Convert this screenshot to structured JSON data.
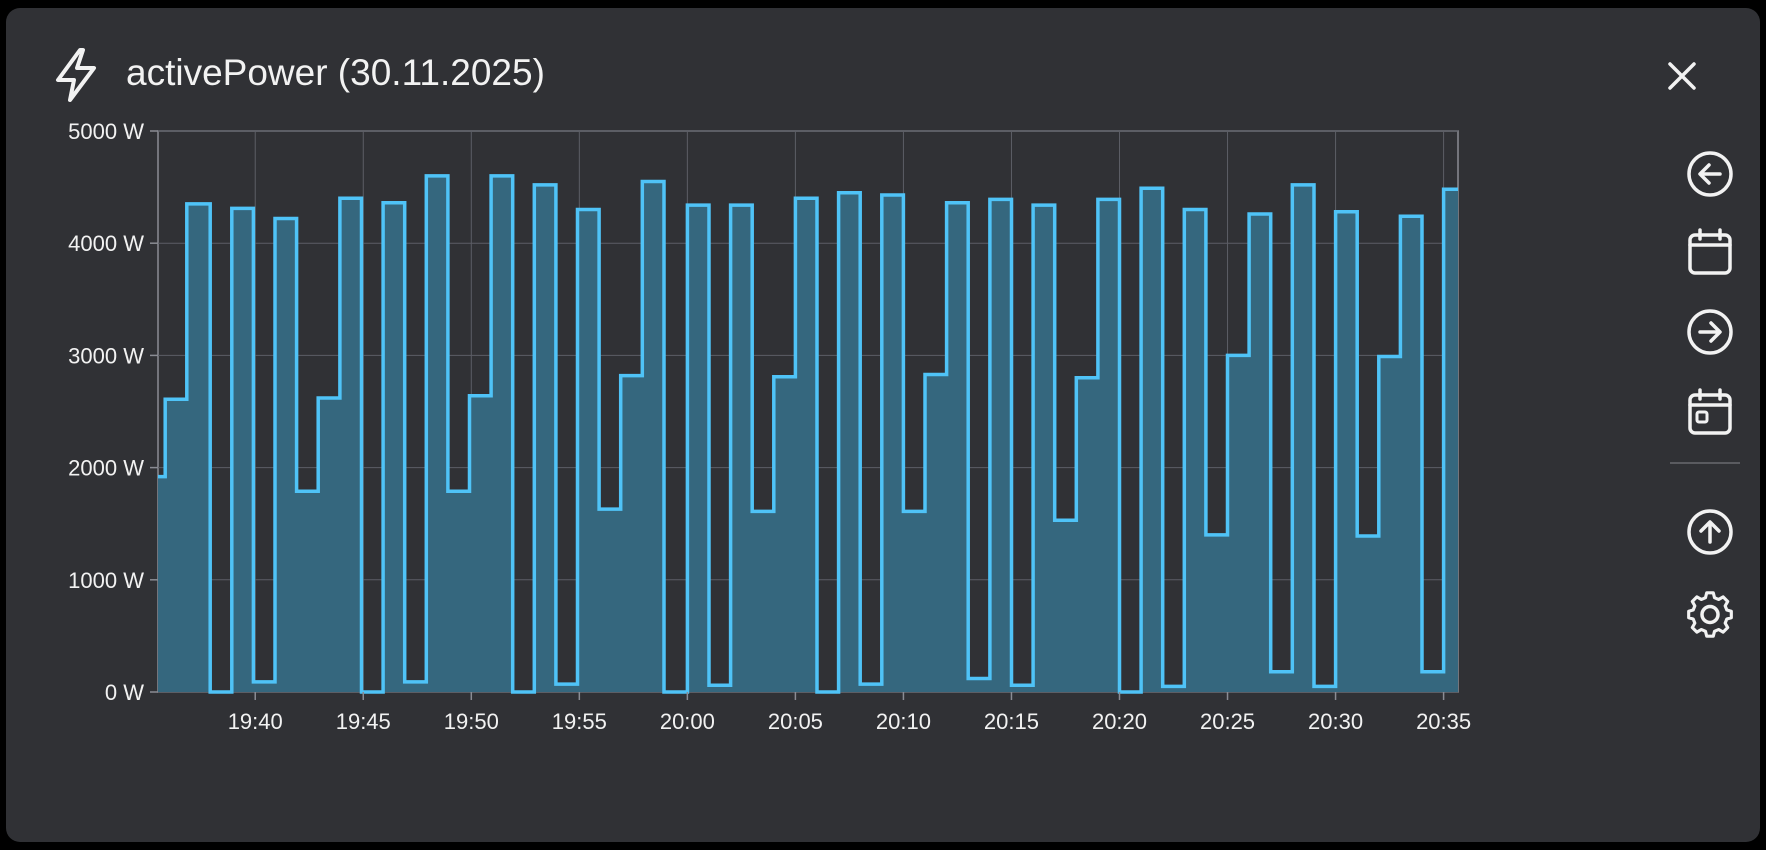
{
  "header": {
    "icon": "lightning-icon",
    "title": "activePower (30.11.2025)",
    "close_icon": "close-icon"
  },
  "toolbar": {
    "items": [
      {
        "icon": "arrow-left-circle-icon"
      },
      {
        "icon": "calendar-icon"
      },
      {
        "icon": "arrow-right-circle-icon"
      },
      {
        "icon": "calendar-today-icon"
      },
      {
        "icon": "arrow-up-circle-icon"
      },
      {
        "icon": "gear-icon"
      }
    ]
  },
  "colors": {
    "background": "#303135",
    "line": "#4fc3f7",
    "fill": "#35677e",
    "grid": "#5c5e66",
    "text": "#f2f2f2"
  },
  "chart_data": {
    "type": "area",
    "step": true,
    "title": "activePower (30.11.2025)",
    "xlabel": "",
    "ylabel": "",
    "ylim": [
      0,
      5000
    ],
    "xlim": [
      "19:35:30",
      "20:35:40"
    ],
    "y_ticks": [
      0,
      1000,
      2000,
      3000,
      4000,
      5000
    ],
    "y_tick_labels": [
      "0 W",
      "1000 W",
      "2000 W",
      "3000 W",
      "4000 W",
      "5000 W"
    ],
    "x_ticks": [
      "19:40",
      "19:45",
      "19:50",
      "19:55",
      "20:00",
      "20:05",
      "20:10",
      "20:15",
      "20:20",
      "20:25",
      "20:30",
      "20:35"
    ],
    "grid": true,
    "legend": "none",
    "series": [
      {
        "values": [
          [
            "19:35:30",
            1920
          ],
          [
            "19:35:50",
            2610
          ],
          [
            "19:36:50",
            4350
          ],
          [
            "19:37:55",
            0
          ],
          [
            "19:38:55",
            4310
          ],
          [
            "19:39:55",
            90
          ],
          [
            "19:40:55",
            4220
          ],
          [
            "19:41:55",
            1790
          ],
          [
            "19:42:55",
            2620
          ],
          [
            "19:43:55",
            4400
          ],
          [
            "19:44:55",
            0
          ],
          [
            "19:45:55",
            4360
          ],
          [
            "19:46:55",
            90
          ],
          [
            "19:47:55",
            4600
          ],
          [
            "19:48:55",
            1790
          ],
          [
            "19:49:55",
            2640
          ],
          [
            "19:50:55",
            4600
          ],
          [
            "19:51:55",
            0
          ],
          [
            "19:52:55",
            4520
          ],
          [
            "19:53:55",
            70
          ],
          [
            "19:54:55",
            4300
          ],
          [
            "19:55:55",
            1630
          ],
          [
            "19:56:55",
            2820
          ],
          [
            "19:57:55",
            4550
          ],
          [
            "19:58:55",
            0
          ],
          [
            "20:00:00",
            4340
          ],
          [
            "20:01:00",
            60
          ],
          [
            "20:02:00",
            4340
          ],
          [
            "20:03:00",
            1610
          ],
          [
            "20:04:00",
            2810
          ],
          [
            "20:05:00",
            4400
          ],
          [
            "20:06:00",
            0
          ],
          [
            "20:07:00",
            4450
          ],
          [
            "20:08:00",
            70
          ],
          [
            "20:09:00",
            4430
          ],
          [
            "20:10:00",
            1610
          ],
          [
            "20:11:00",
            2830
          ],
          [
            "20:12:00",
            4360
          ],
          [
            "20:13:00",
            120
          ],
          [
            "20:14:00",
            4390
          ],
          [
            "20:15:00",
            60
          ],
          [
            "20:16:00",
            4340
          ],
          [
            "20:17:00",
            1530
          ],
          [
            "20:18:00",
            2800
          ],
          [
            "20:19:00",
            4390
          ],
          [
            "20:20:00",
            0
          ],
          [
            "20:21:00",
            4490
          ],
          [
            "20:22:00",
            50
          ],
          [
            "20:23:00",
            4300
          ],
          [
            "20:24:00",
            1400
          ],
          [
            "20:25:00",
            3000
          ],
          [
            "20:26:00",
            4260
          ],
          [
            "20:27:00",
            180
          ],
          [
            "20:28:00",
            4520
          ],
          [
            "20:29:00",
            50
          ],
          [
            "20:30:00",
            4280
          ],
          [
            "20:31:00",
            1390
          ],
          [
            "20:32:00",
            2990
          ],
          [
            "20:33:00",
            4240
          ],
          [
            "20:34:00",
            180
          ],
          [
            "20:35:00",
            4480
          ],
          [
            "20:35:40",
            4480
          ]
        ]
      }
    ]
  }
}
